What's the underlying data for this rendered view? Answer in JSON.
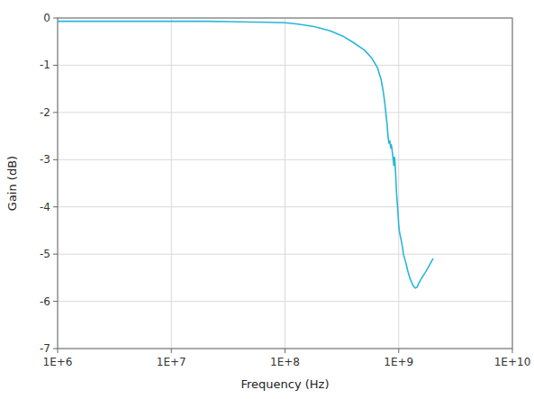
{
  "chart_data": {
    "type": "line",
    "xlabel": "Frequency (Hz)",
    "ylabel": "Gain (dB)",
    "log": "x",
    "grid": true,
    "color": "#29b6d8",
    "xlim": [
      1000000,
      10000000000
    ],
    "ylim": [
      -7,
      0
    ],
    "xticks": [
      {
        "value": 1000000,
        "label": "1E+6"
      },
      {
        "value": 10000000,
        "label": "1E+7"
      },
      {
        "value": 100000000,
        "label": "1E+8"
      },
      {
        "value": 1000000000,
        "label": "1E+9"
      },
      {
        "value": 10000000000,
        "label": "1E+10"
      }
    ],
    "yticks": [
      0,
      -1,
      -2,
      -3,
      -4,
      -5,
      -6,
      -7
    ],
    "x": [
      1000000.0,
      2000000.0,
      4000000.0,
      7000000.0,
      10000000.0,
      20000000.0,
      40000000.0,
      70000000.0,
      100000000.0,
      130000000.0,
      180000000.0,
      250000000.0,
      320000000.0,
      400000000.0,
      500000000.0,
      580000000.0,
      650000000.0,
      700000000.0,
      730000000.0,
      750000000.0,
      770000000.0,
      790000000.0,
      805000000.0,
      820000000.0,
      835000000.0,
      850000000.0,
      860000000.0,
      870000000.0,
      880000000.0,
      890000000.0,
      900000000.0,
      905000000.0,
      910000000.0,
      915000000.0,
      920000000.0,
      930000000.0,
      940000000.0,
      950000000.0,
      960000000.0,
      970000000.0,
      980000000.0,
      990000000.0,
      1000000000.0,
      1020000000.0,
      1050000000.0,
      1080000000.0,
      1100000000.0,
      1130000000.0,
      1160000000.0,
      1200000000.0,
      1250000000.0,
      1300000000.0,
      1350000000.0,
      1400000000.0,
      1450000000.0,
      1500000000.0,
      1600000000.0,
      1700000000.0,
      1800000000.0,
      2000000000.0
    ],
    "values": [
      -0.07,
      -0.07,
      -0.07,
      -0.07,
      -0.07,
      -0.07,
      -0.08,
      -0.09,
      -0.1,
      -0.13,
      -0.18,
      -0.27,
      -0.38,
      -0.52,
      -0.68,
      -0.85,
      -1.05,
      -1.3,
      -1.55,
      -1.75,
      -2.0,
      -2.25,
      -2.5,
      -2.65,
      -2.6,
      -2.75,
      -2.68,
      -2.75,
      -2.85,
      -2.95,
      -3.05,
      -3.12,
      -3.07,
      -3.0,
      -2.95,
      -3.1,
      -3.3,
      -3.55,
      -3.75,
      -3.9,
      -4.05,
      -4.2,
      -4.4,
      -4.55,
      -4.7,
      -4.85,
      -5.0,
      -5.1,
      -5.2,
      -5.35,
      -5.5,
      -5.6,
      -5.68,
      -5.72,
      -5.7,
      -5.62,
      -5.5,
      -5.4,
      -5.3,
      -5.1
    ]
  }
}
